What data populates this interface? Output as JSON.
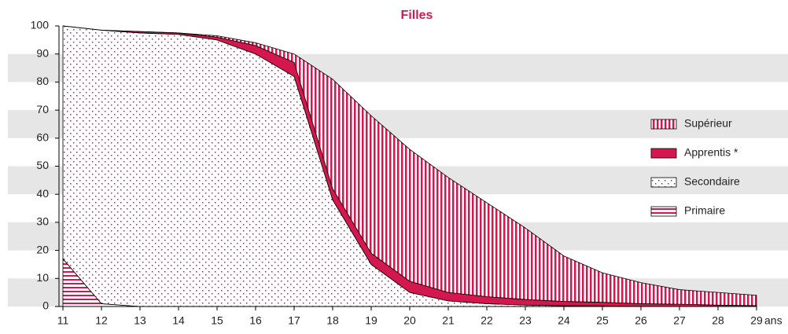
{
  "chart_data": {
    "type": "stacked-area",
    "title": "Filles",
    "x_label": "ans",
    "x": [
      11,
      12,
      13,
      14,
      15,
      16,
      17,
      18,
      19,
      20,
      21,
      22,
      23,
      24,
      25,
      26,
      27,
      28,
      29
    ],
    "xlim": [
      11,
      29
    ],
    "xticks": [
      11,
      12,
      13,
      14,
      15,
      16,
      17,
      18,
      19,
      20,
      21,
      22,
      23,
      24,
      25,
      26,
      27,
      28,
      29
    ],
    "ylim": [
      0,
      100
    ],
    "yticks": [
      0,
      10,
      20,
      30,
      40,
      50,
      60,
      70,
      80,
      90,
      100
    ],
    "grid": "bands",
    "legend": "right",
    "series": [
      {
        "name": "Primaire",
        "color": "#d5174f",
        "pattern": "horizontal-stripes",
        "values": [
          17,
          1,
          0,
          0,
          0,
          0,
          0,
          0,
          0,
          0,
          0,
          0,
          0,
          0,
          0,
          0,
          0,
          0,
          0
        ]
      },
      {
        "name": "Secondaire",
        "color": "#d5174f",
        "pattern": "dots",
        "values": [
          83,
          97.5,
          97.5,
          97,
          95,
          90,
          82,
          38,
          15,
          5,
          2,
          1,
          0.5,
          0.3,
          0.2,
          0.1,
          0,
          0,
          0
        ]
      },
      {
        "name": "Apprentis *",
        "color": "#d5174f",
        "pattern": "solid",
        "values": [
          0,
          0,
          0.5,
          0.5,
          1,
          3,
          5,
          4,
          4,
          4,
          3,
          2.5,
          2,
          1.5,
          1.3,
          0.9,
          0.8,
          0.5,
          0.3
        ]
      },
      {
        "name": "Supérieur",
        "color": "#d5174f",
        "pattern": "vertical-stripes",
        "values": [
          0,
          0,
          0,
          0,
          0.5,
          1,
          3,
          39,
          49,
          47,
          41,
          33.5,
          25.5,
          16.2,
          10.5,
          7.5,
          5.2,
          4.5,
          3.7
        ]
      }
    ]
  }
}
